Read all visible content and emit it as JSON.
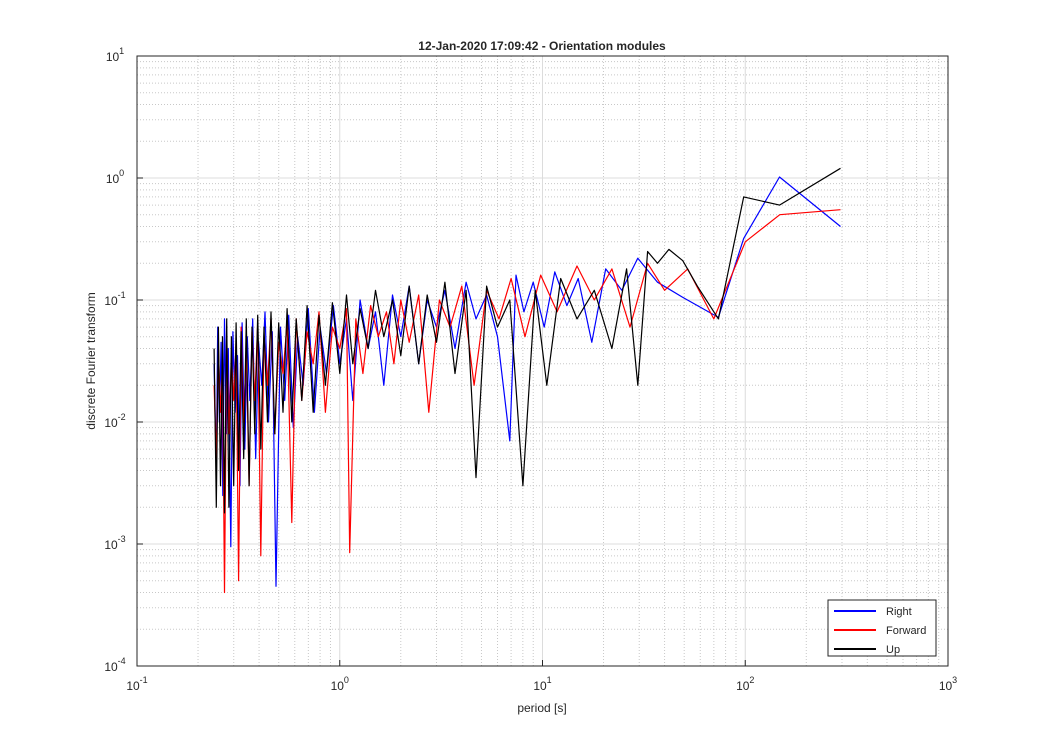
{
  "chart_data": {
    "type": "line",
    "title": "12-Jan-2020 17:09:42 - Orientation modules",
    "xlabel": "period [s]",
    "ylabel": "discrete Fourier transform",
    "xscale": "log",
    "yscale": "log",
    "xlim": [
      0.1,
      1000
    ],
    "ylim": [
      0.0001,
      10
    ],
    "grid": true,
    "minor_grid": true,
    "legend_position": "bottom-right",
    "x_ticks": [
      {
        "base": "10",
        "exp": "-1",
        "value": 0.1
      },
      {
        "base": "10",
        "exp": "0",
        "value": 1
      },
      {
        "base": "10",
        "exp": "1",
        "value": 10
      },
      {
        "base": "10",
        "exp": "2",
        "value": 100
      },
      {
        "base": "10",
        "exp": "3",
        "value": 1000
      }
    ],
    "y_ticks": [
      {
        "base": "10",
        "exp": "-4",
        "value": 0.0001
      },
      {
        "base": "10",
        "exp": "-3",
        "value": 0.001
      },
      {
        "base": "10",
        "exp": "-2",
        "value": 0.01
      },
      {
        "base": "10",
        "exp": "-1",
        "value": 0.1
      },
      {
        "base": "10",
        "exp": "0",
        "value": 1
      },
      {
        "base": "10",
        "exp": "1",
        "value": 10
      }
    ],
    "series": [
      {
        "name": "Right",
        "color": "#0000ff",
        "x": [
          0.24,
          0.246,
          0.25,
          0.255,
          0.26,
          0.265,
          0.27,
          0.276,
          0.282,
          0.29,
          0.297,
          0.305,
          0.313,
          0.322,
          0.33,
          0.34,
          0.35,
          0.36,
          0.372,
          0.385,
          0.398,
          0.412,
          0.428,
          0.445,
          0.465,
          0.485,
          0.51,
          0.535,
          0.56,
          0.59,
          0.62,
          0.66,
          0.7,
          0.75,
          0.8,
          0.86,
          0.93,
          1.0,
          1.08,
          1.16,
          1.26,
          1.38,
          1.5,
          1.65,
          1.82,
          2.0,
          2.2,
          2.45,
          2.7,
          3.0,
          3.3,
          3.7,
          4.2,
          4.7,
          5.3,
          6.0,
          6.9,
          7.4,
          8.1,
          9.0,
          10.2,
          11.5,
          13.2,
          15.0,
          17.5,
          20.5,
          24.6,
          29.5,
          36.9,
          49.2,
          73.7,
          98.3,
          147.5,
          295.0
        ],
        "values": [
          0.03,
          0.004,
          0.06,
          0.01,
          0.045,
          0.0025,
          0.07,
          0.008,
          0.04,
          0.00095,
          0.055,
          0.012,
          0.035,
          0.003,
          0.065,
          0.006,
          0.05,
          0.015,
          0.07,
          0.005,
          0.045,
          0.02,
          0.08,
          0.01,
          0.055,
          0.00045,
          0.06,
          0.015,
          0.075,
          0.009,
          0.05,
          0.02,
          0.085,
          0.012,
          0.06,
          0.025,
          0.09,
          0.03,
          0.07,
          0.015,
          0.1,
          0.04,
          0.08,
          0.02,
          0.11,
          0.05,
          0.13,
          0.03,
          0.1,
          0.06,
          0.12,
          0.04,
          0.14,
          0.07,
          0.11,
          0.05,
          0.007,
          0.16,
          0.08,
          0.14,
          0.06,
          0.17,
          0.09,
          0.15,
          0.045,
          0.18,
          0.12,
          0.22,
          0.14,
          0.105,
          0.072,
          0.32,
          1.02,
          0.4
        ]
      },
      {
        "name": "Forward",
        "color": "#ff0000",
        "x": [
          0.24,
          0.246,
          0.252,
          0.258,
          0.264,
          0.27,
          0.277,
          0.284,
          0.292,
          0.3,
          0.308,
          0.317,
          0.326,
          0.336,
          0.346,
          0.357,
          0.369,
          0.381,
          0.394,
          0.408,
          0.423,
          0.44,
          0.458,
          0.478,
          0.5,
          0.525,
          0.55,
          0.58,
          0.61,
          0.65,
          0.69,
          0.74,
          0.79,
          0.85,
          0.92,
          1.0,
          1.08,
          1.12,
          1.2,
          1.3,
          1.42,
          1.55,
          1.7,
          1.85,
          2.0,
          2.2,
          2.45,
          2.75,
          3.1,
          3.5,
          4.0,
          4.6,
          5.3,
          6.1,
          7.0,
          8.2,
          9.8,
          11.8,
          14.8,
          18.0,
          22.0,
          27.0,
          33.0,
          40.0,
          52.0,
          70.0,
          100.0,
          148.0,
          295.0
        ],
        "values": [
          0.02,
          0.005,
          0.04,
          0.012,
          0.03,
          0.0004,
          0.05,
          0.008,
          0.035,
          0.015,
          0.045,
          0.0005,
          0.06,
          0.01,
          0.04,
          0.003,
          0.055,
          0.015,
          0.065,
          0.0008,
          0.05,
          0.02,
          0.07,
          0.008,
          0.045,
          0.025,
          0.065,
          0.0015,
          0.07,
          0.015,
          0.055,
          0.03,
          0.08,
          0.012,
          0.06,
          0.04,
          0.085,
          0.00085,
          0.07,
          0.025,
          0.09,
          0.05,
          0.08,
          0.03,
          0.1,
          0.045,
          0.11,
          0.012,
          0.1,
          0.06,
          0.13,
          0.02,
          0.12,
          0.07,
          0.15,
          0.05,
          0.16,
          0.08,
          0.19,
          0.1,
          0.18,
          0.06,
          0.2,
          0.12,
          0.18,
          0.07,
          0.3,
          0.5,
          0.55
        ]
      },
      {
        "name": "Up",
        "color": "#000000",
        "x": [
          0.24,
          0.246,
          0.252,
          0.258,
          0.264,
          0.27,
          0.277,
          0.284,
          0.292,
          0.3,
          0.308,
          0.317,
          0.326,
          0.336,
          0.346,
          0.357,
          0.369,
          0.381,
          0.394,
          0.408,
          0.423,
          0.44,
          0.458,
          0.478,
          0.5,
          0.525,
          0.55,
          0.58,
          0.61,
          0.65,
          0.69,
          0.74,
          0.79,
          0.85,
          0.92,
          1.0,
          1.08,
          1.16,
          1.26,
          1.38,
          1.5,
          1.65,
          1.82,
          2.0,
          2.2,
          2.45,
          2.7,
          3.0,
          3.3,
          3.7,
          4.2,
          4.7,
          5.3,
          6.0,
          6.9,
          8.0,
          9.2,
          10.5,
          12.3,
          14.8,
          18.0,
          22.0,
          26.0,
          29.5,
          33.0,
          36.9,
          42.0,
          49.2,
          58.0,
          73.7,
          98.3,
          147.5,
          295.0
        ],
        "values": [
          0.04,
          0.002,
          0.06,
          0.003,
          0.05,
          0.0018,
          0.07,
          0.002,
          0.05,
          0.003,
          0.065,
          0.004,
          0.055,
          0.005,
          0.07,
          0.003,
          0.06,
          0.008,
          0.075,
          0.006,
          0.06,
          0.01,
          0.08,
          0.008,
          0.065,
          0.012,
          0.085,
          0.01,
          0.07,
          0.015,
          0.09,
          0.012,
          0.075,
          0.02,
          0.095,
          0.025,
          0.11,
          0.03,
          0.085,
          0.04,
          0.12,
          0.05,
          0.1,
          0.035,
          0.13,
          0.03,
          0.11,
          0.045,
          0.14,
          0.025,
          0.12,
          0.0035,
          0.13,
          0.06,
          0.1,
          0.003,
          0.12,
          0.02,
          0.15,
          0.07,
          0.12,
          0.04,
          0.18,
          0.02,
          0.25,
          0.2,
          0.26,
          0.21,
          0.13,
          0.07,
          0.7,
          0.6,
          1.2
        ]
      }
    ]
  }
}
